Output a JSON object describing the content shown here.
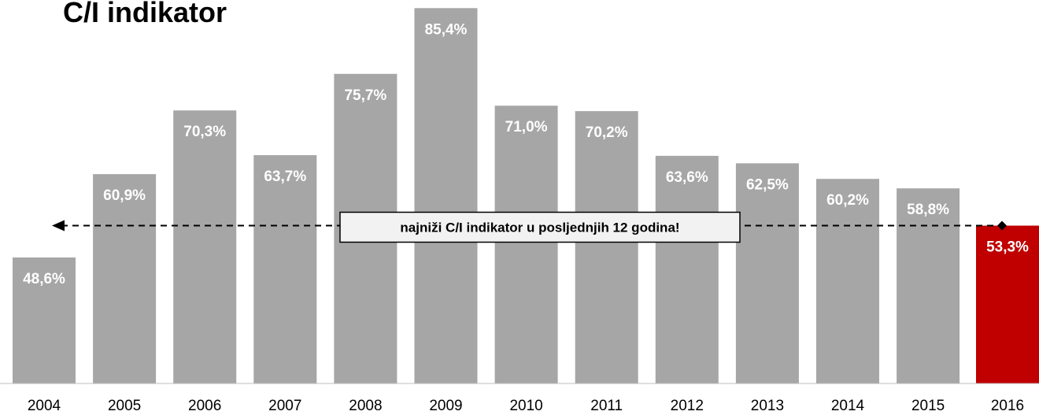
{
  "chart_data": {
    "type": "bar",
    "title": "C/I indikator",
    "categories": [
      "2004",
      "2005",
      "2006",
      "2007",
      "2008",
      "2009",
      "2010",
      "2011",
      "2012",
      "2013",
      "2014",
      "2015",
      "2016"
    ],
    "values": [
      48.6,
      60.9,
      70.3,
      63.7,
      75.7,
      85.4,
      71.0,
      70.2,
      63.6,
      62.5,
      60.2,
      58.8,
      53.3
    ],
    "value_labels": [
      "48,6%",
      "60,9%",
      "70,3%",
      "63,7%",
      "75,7%",
      "85,4%",
      "71,0%",
      "70,2%",
      "63,6%",
      "62,5%",
      "60,2%",
      "58,8%",
      "53,3%"
    ],
    "colors": [
      "#a6a6a6",
      "#a6a6a6",
      "#a6a6a6",
      "#a6a6a6",
      "#a6a6a6",
      "#a6a6a6",
      "#a6a6a6",
      "#a6a6a6",
      "#a6a6a6",
      "#a6a6a6",
      "#a6a6a6",
      "#a6a6a6",
      "#c00000"
    ],
    "ylim": [
      30,
      86.6
    ],
    "annotation": "najniži C/I indikator u posljednjih 12 godina!"
  }
}
